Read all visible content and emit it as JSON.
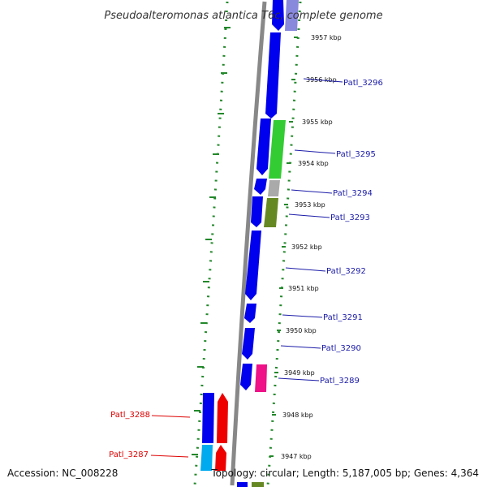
{
  "title": "Pseudoalteromonas atlantica T6c, complete genome",
  "accession": "Accession: NC_008228",
  "topology": "Topology: circular; Length: 5,187,005 bp; Genes: 4,364",
  "ticks": [
    "3957 kbp",
    "3956 kbp",
    "3955 kbp",
    "3954 kbp",
    "3953 kbp",
    "3952 kbp",
    "3951 kbp",
    "3950 kbp",
    "3949 kbp",
    "3948 kbp",
    "3947 kbp"
  ],
  "labels_right": [
    "Patl_3296",
    "Patl_3295",
    "Patl_3294",
    "Patl_3293",
    "Patl_3292",
    "Patl_3291",
    "Patl_3290",
    "Patl_3289"
  ],
  "labels_left": [
    "Patl_3288",
    "Patl_3287"
  ],
  "colors": {
    "cds": "#0000ee",
    "light_green": "#33cc33",
    "grey": "#aaaaaa",
    "olive": "#668822",
    "magenta": "#ee1188",
    "red": "#ee0000",
    "cyan": "#00aaee",
    "lavender": "#8888dd",
    "backbone": "#888888",
    "gc_dots": "#22882a",
    "label_blue": "#1a1aa8",
    "label_red": "#dd0000"
  }
}
